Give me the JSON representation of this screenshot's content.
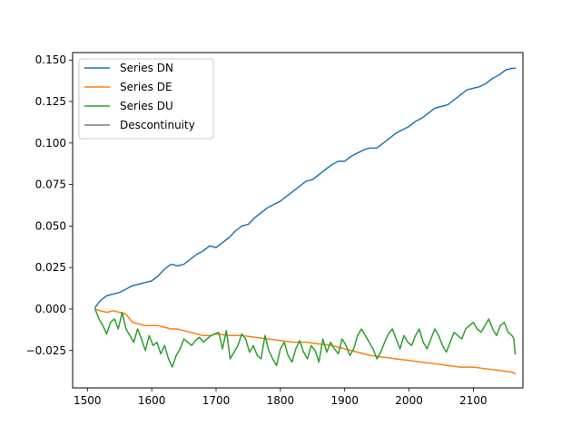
{
  "chart_data": {
    "type": "line",
    "title": "",
    "xlabel": "",
    "ylabel": "",
    "xlim": [
      1477,
      2177
    ],
    "ylim": [
      -0.0475,
      0.1545
    ],
    "xticks": [
      1500,
      1600,
      1700,
      1800,
      1900,
      2000,
      2100
    ],
    "yticks": [
      -0.025,
      0.0,
      0.025,
      0.05,
      0.075,
      0.1,
      0.125,
      0.15
    ],
    "ytick_labels": [
      "−0.025",
      "0.000",
      "0.025",
      "0.050",
      "0.075",
      "0.100",
      "0.125",
      "0.150"
    ],
    "legend_position": "top-left",
    "series": [
      {
        "name": "Series DN",
        "color": "#1f77b4",
        "x": [
          1512,
          1520,
          1530,
          1540,
          1550,
          1560,
          1570,
          1580,
          1590,
          1600,
          1610,
          1620,
          1630,
          1640,
          1650,
          1660,
          1670,
          1680,
          1690,
          1700,
          1710,
          1720,
          1730,
          1740,
          1750,
          1760,
          1770,
          1780,
          1790,
          1800,
          1810,
          1820,
          1830,
          1840,
          1850,
          1860,
          1870,
          1880,
          1890,
          1900,
          1910,
          1920,
          1930,
          1940,
          1950,
          1960,
          1970,
          1980,
          1990,
          2000,
          2010,
          2020,
          2030,
          2040,
          2050,
          2060,
          2070,
          2080,
          2090,
          2100,
          2110,
          2120,
          2130,
          2140,
          2150,
          2160,
          2165
        ],
        "values": [
          0.001,
          0.005,
          0.008,
          0.009,
          0.01,
          0.012,
          0.014,
          0.015,
          0.016,
          0.017,
          0.02,
          0.024,
          0.027,
          0.026,
          0.027,
          0.03,
          0.033,
          0.035,
          0.038,
          0.037,
          0.04,
          0.043,
          0.047,
          0.05,
          0.051,
          0.055,
          0.058,
          0.061,
          0.063,
          0.065,
          0.068,
          0.071,
          0.074,
          0.077,
          0.078,
          0.081,
          0.084,
          0.087,
          0.089,
          0.089,
          0.092,
          0.094,
          0.096,
          0.097,
          0.097,
          0.1,
          0.103,
          0.106,
          0.108,
          0.11,
          0.113,
          0.115,
          0.118,
          0.121,
          0.122,
          0.123,
          0.126,
          0.129,
          0.132,
          0.133,
          0.134,
          0.136,
          0.139,
          0.141,
          0.144,
          0.145,
          0.145
        ]
      },
      {
        "name": "Series DE",
        "color": "#ff7f0e",
        "x": [
          1512,
          1520,
          1530,
          1540,
          1550,
          1560,
          1570,
          1580,
          1590,
          1600,
          1610,
          1620,
          1630,
          1640,
          1650,
          1660,
          1670,
          1680,
          1690,
          1700,
          1720,
          1740,
          1760,
          1780,
          1800,
          1820,
          1840,
          1860,
          1880,
          1900,
          1920,
          1940,
          1960,
          1980,
          2000,
          2020,
          2040,
          2060,
          2080,
          2100,
          2120,
          2140,
          2160,
          2165
        ],
        "values": [
          0.0,
          -0.001,
          -0.002,
          -0.001,
          -0.002,
          -0.003,
          -0.008,
          -0.009,
          -0.01,
          -0.01,
          -0.01,
          -0.011,
          -0.012,
          -0.012,
          -0.013,
          -0.014,
          -0.015,
          -0.016,
          -0.016,
          -0.015,
          -0.016,
          -0.016,
          -0.017,
          -0.018,
          -0.019,
          -0.02,
          -0.02,
          -0.021,
          -0.022,
          -0.024,
          -0.026,
          -0.028,
          -0.029,
          -0.03,
          -0.031,
          -0.032,
          -0.033,
          -0.034,
          -0.035,
          -0.035,
          -0.036,
          -0.037,
          -0.038,
          -0.039
        ]
      },
      {
        "name": "Series DU",
        "color": "#2ca02c",
        "x": [
          1512,
          1518,
          1524,
          1530,
          1536,
          1542,
          1548,
          1554,
          1560,
          1566,
          1572,
          1578,
          1584,
          1590,
          1596,
          1602,
          1608,
          1614,
          1620,
          1626,
          1632,
          1638,
          1644,
          1650,
          1656,
          1662,
          1668,
          1674,
          1680,
          1686,
          1692,
          1698,
          1704,
          1710,
          1716,
          1722,
          1728,
          1734,
          1740,
          1746,
          1752,
          1758,
          1764,
          1770,
          1776,
          1782,
          1788,
          1794,
          1800,
          1806,
          1812,
          1818,
          1824,
          1830,
          1836,
          1842,
          1848,
          1854,
          1860,
          1866,
          1872,
          1878,
          1884,
          1890,
          1896,
          1902,
          1908,
          1914,
          1920,
          1926,
          1932,
          1938,
          1944,
          1950,
          1956,
          1962,
          1968,
          1974,
          1980,
          1986,
          1992,
          1998,
          2004,
          2010,
          2016,
          2022,
          2028,
          2034,
          2040,
          2046,
          2052,
          2058,
          2064,
          2070,
          2076,
          2082,
          2088,
          2094,
          2100,
          2106,
          2112,
          2118,
          2124,
          2130,
          2136,
          2142,
          2148,
          2154,
          2160,
          2163,
          2165
        ],
        "values": [
          0.0,
          -0.006,
          -0.01,
          -0.015,
          -0.008,
          -0.006,
          -0.012,
          -0.002,
          -0.012,
          -0.016,
          -0.02,
          -0.012,
          -0.018,
          -0.025,
          -0.016,
          -0.022,
          -0.02,
          -0.027,
          -0.022,
          -0.03,
          -0.035,
          -0.028,
          -0.024,
          -0.018,
          -0.02,
          -0.022,
          -0.019,
          -0.017,
          -0.02,
          -0.018,
          -0.016,
          -0.015,
          -0.014,
          -0.024,
          -0.013,
          -0.03,
          -0.026,
          -0.022,
          -0.015,
          -0.018,
          -0.026,
          -0.022,
          -0.028,
          -0.03,
          -0.016,
          -0.025,
          -0.03,
          -0.034,
          -0.024,
          -0.02,
          -0.028,
          -0.032,
          -0.024,
          -0.019,
          -0.026,
          -0.03,
          -0.022,
          -0.025,
          -0.032,
          -0.018,
          -0.026,
          -0.02,
          -0.024,
          -0.027,
          -0.018,
          -0.022,
          -0.028,
          -0.024,
          -0.016,
          -0.012,
          -0.016,
          -0.02,
          -0.024,
          -0.03,
          -0.026,
          -0.02,
          -0.015,
          -0.012,
          -0.018,
          -0.024,
          -0.016,
          -0.02,
          -0.022,
          -0.016,
          -0.012,
          -0.02,
          -0.024,
          -0.018,
          -0.012,
          -0.016,
          -0.022,
          -0.026,
          -0.02,
          -0.014,
          -0.016,
          -0.018,
          -0.012,
          -0.01,
          -0.008,
          -0.012,
          -0.014,
          -0.01,
          -0.006,
          -0.012,
          -0.016,
          -0.01,
          -0.008,
          -0.014,
          -0.016,
          -0.018,
          -0.027
        ]
      },
      {
        "name": "Descontinuity",
        "color": "#7f7f7f",
        "x": [],
        "values": []
      }
    ]
  }
}
